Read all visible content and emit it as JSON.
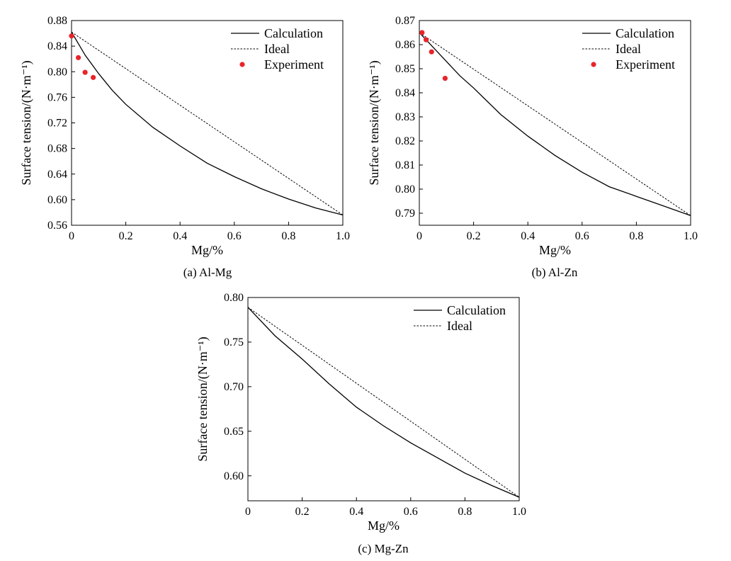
{
  "chart_data": [
    {
      "type": "line",
      "caption": "(a) Al-Mg",
      "xlabel": "Mg/%",
      "ylabel": "Surface tension/(N·m⁻¹)",
      "xlim": [
        0,
        1
      ],
      "ylim": [
        0.56,
        0.88
      ],
      "xticks": [
        "0",
        "0.2",
        "0.4",
        "0.6",
        "0.8",
        "1.0"
      ],
      "yticks": [
        "0.56",
        "0.60",
        "0.64",
        "0.68",
        "0.72",
        "0.76",
        "0.80",
        "0.84",
        "0.88"
      ],
      "legend_position": "top-right",
      "series": [
        {
          "name": "Calculation",
          "style": "solid",
          "x": [
            0,
            0.05,
            0.1,
            0.15,
            0.2,
            0.3,
            0.4,
            0.5,
            0.6,
            0.7,
            0.8,
            0.9,
            1.0
          ],
          "y": [
            0.862,
            0.826,
            0.797,
            0.771,
            0.749,
            0.713,
            0.684,
            0.657,
            0.636,
            0.617,
            0.601,
            0.587,
            0.576
          ]
        },
        {
          "name": "Ideal",
          "style": "dotted",
          "x": [
            0,
            1.0
          ],
          "y": [
            0.862,
            0.576
          ]
        },
        {
          "name": "Experiment",
          "style": "points",
          "color": "#e8252a",
          "x": [
            0.0,
            0.025,
            0.05,
            0.08
          ],
          "y": [
            0.856,
            0.822,
            0.799,
            0.791
          ]
        }
      ]
    },
    {
      "type": "line",
      "caption": "(b) Al-Zn",
      "xlabel": "Mg/%",
      "ylabel": "Surface tension/(N·m⁻¹)",
      "xlim": [
        0,
        1
      ],
      "ylim": [
        0.785,
        0.87
      ],
      "xticks": [
        "0",
        "0.2",
        "0.4",
        "0.6",
        "0.8",
        "1.0"
      ],
      "yticks": [
        "0.79",
        "0.80",
        "0.81",
        "0.82",
        "0.83",
        "0.84",
        "0.85",
        "0.86",
        "0.87"
      ],
      "legend_position": "top-right",
      "series": [
        {
          "name": "Calculation",
          "style": "solid",
          "x": [
            0,
            0.05,
            0.1,
            0.15,
            0.2,
            0.3,
            0.4,
            0.5,
            0.6,
            0.7,
            0.8,
            0.9,
            1.0
          ],
          "y": [
            0.865,
            0.859,
            0.853,
            0.847,
            0.842,
            0.831,
            0.822,
            0.814,
            0.807,
            0.801,
            0.797,
            0.793,
            0.789
          ]
        },
        {
          "name": "Ideal",
          "style": "dotted",
          "x": [
            0,
            1.0
          ],
          "y": [
            0.865,
            0.789
          ]
        },
        {
          "name": "Experiment",
          "style": "points",
          "color": "#e8252a",
          "x": [
            0.01,
            0.025,
            0.045,
            0.095
          ],
          "y": [
            0.865,
            0.862,
            0.857,
            0.846
          ]
        }
      ]
    },
    {
      "type": "line",
      "caption": "(c) Mg-Zn",
      "xlabel": "Mg/%",
      "ylabel": "Surface tension/(N·m⁻¹)",
      "xlim": [
        0,
        1
      ],
      "ylim": [
        0.572,
        0.8
      ],
      "xticks": [
        "0",
        "0.2",
        "0.4",
        "0.6",
        "0.8",
        "1.0"
      ],
      "yticks": [
        "0.60",
        "0.65",
        "0.70",
        "0.75",
        "0.80"
      ],
      "legend_position": "top-right",
      "series": [
        {
          "name": "Calculation",
          "style": "solid",
          "x": [
            0,
            0.1,
            0.2,
            0.3,
            0.4,
            0.5,
            0.6,
            0.7,
            0.8,
            0.9,
            1.0
          ],
          "y": [
            0.789,
            0.757,
            0.731,
            0.703,
            0.677,
            0.656,
            0.637,
            0.62,
            0.603,
            0.589,
            0.576
          ]
        },
        {
          "name": "Ideal",
          "style": "dotted",
          "x": [
            0,
            1.0
          ],
          "y": [
            0.789,
            0.576
          ]
        }
      ]
    }
  ]
}
